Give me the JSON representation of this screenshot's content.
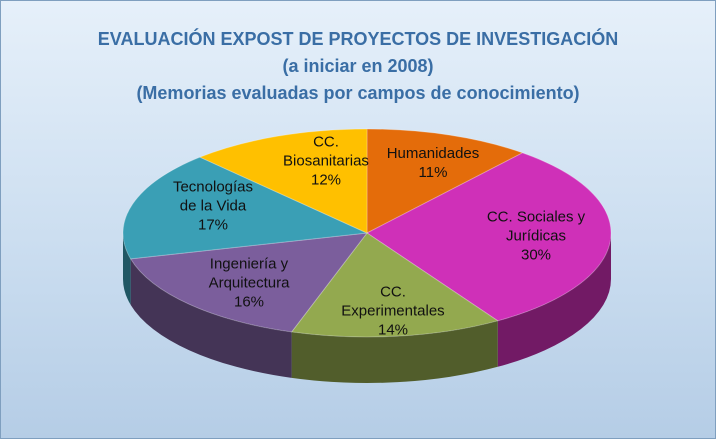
{
  "chart_data": {
    "type": "pie3d",
    "title": "EVALUACIÓN EXPOST DE PROYECTOS DE INVESTIGACIÓN",
    "subtitle": [
      "(a iniciar en 2008)",
      "(Memorias evaluadas por campos de conocimiento)"
    ],
    "categories": [
      "Humanidades",
      "CC. Sociales y Jurídicas",
      "CC. Experimentales",
      "Ingeniería y Arquitectura",
      "Tecnologías de la Vida",
      "CC. Biosanitarias"
    ],
    "values": [
      11,
      30,
      14,
      16,
      17,
      12
    ],
    "value_labels": [
      "11%",
      "30%",
      "14%",
      "16%",
      "17%",
      "12%"
    ],
    "colors": [
      "#e46c0a",
      "#cf30b8",
      "#93a94f",
      "#7b5e9c",
      "#3a9fb5",
      "#ffc000"
    ]
  }
}
